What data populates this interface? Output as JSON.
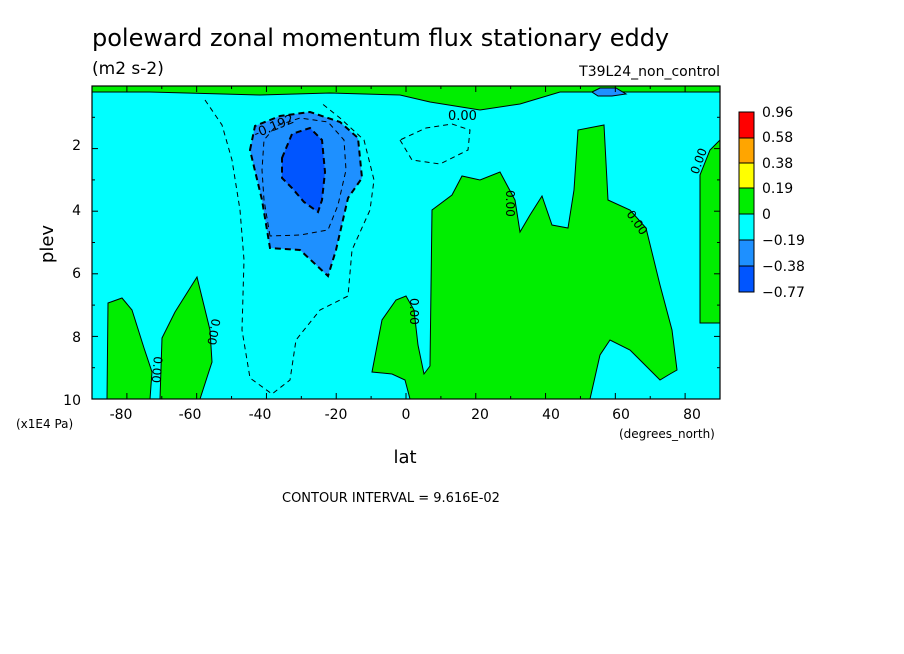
{
  "chart_data": {
    "type": "heatmap",
    "title": "poleward zonal momentum flux stationary eddy",
    "units": "(m2 s-2)",
    "dataset": "T39L24_non_control",
    "xlabel": "lat",
    "xunits": "(degrees_north)",
    "ylabel": "plev",
    "yunits": "(x1E4 Pa)",
    "xlim": [
      -90,
      90
    ],
    "ylim": [
      10,
      0
    ],
    "x_ticks": [
      "-80",
      "-60",
      "-40",
      "-20",
      "0",
      "20",
      "40",
      "60",
      "80"
    ],
    "y_ticks": [
      "2",
      "4",
      "6",
      "8",
      "10"
    ],
    "footer": "CONTOUR INTERVAL = 9.616E-02",
    "colorbar": {
      "labels": [
        "0.96",
        "0.58",
        "0.38",
        "0.19",
        "0",
        "−0.19",
        "−0.38",
        "−0.77"
      ],
      "colors": [
        "#ff0000",
        "#ffa500",
        "#ffff00",
        "#00ee00",
        "#00ffff",
        "#1e90ff",
        "#0055ff"
      ]
    },
    "contour_labels": [
      "0.00",
      "-0.192"
    ],
    "regions": {
      "background": "#00ffff",
      "positive_fill": "#00ee00",
      "negative_fill": "#1e90ff",
      "strong_negative_fill": "#0055ff"
    }
  }
}
